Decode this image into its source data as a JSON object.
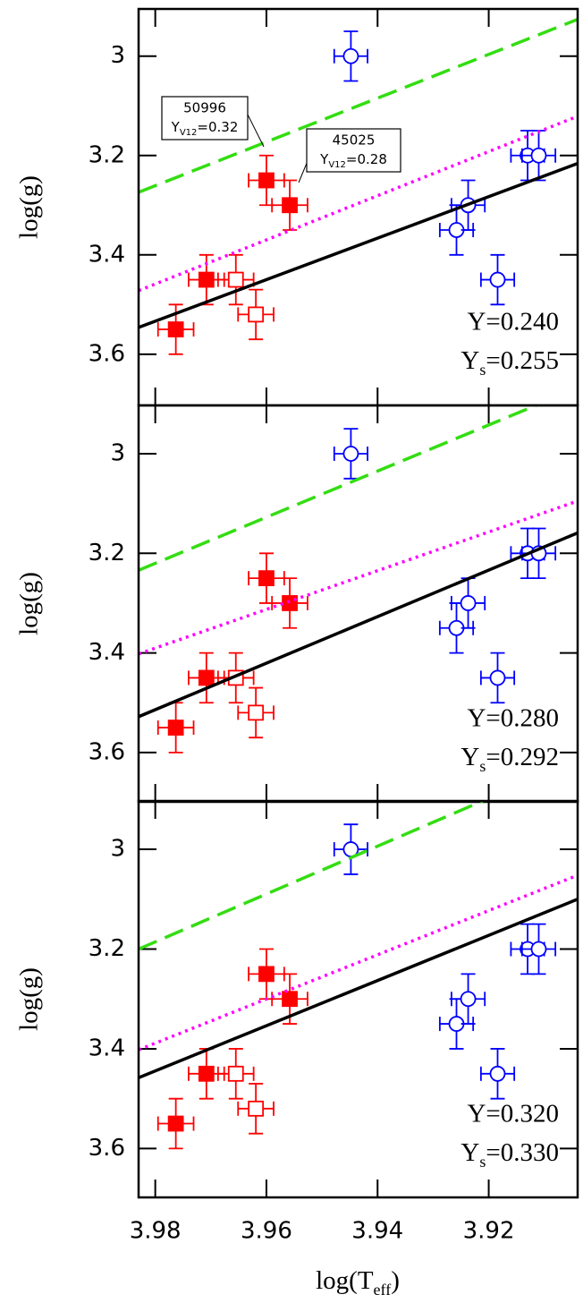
{
  "chart_data": [
    {
      "type": "scatter",
      "y_label": "log(g)",
      "xlim": [
        3.983,
        3.904
      ],
      "ylim": [
        3.703,
        2.905
      ],
      "xticks": [
        3.98,
        3.96,
        3.94,
        3.92
      ],
      "yticks": [
        3,
        3.2,
        3.4,
        3.6
      ],
      "series": [
        {
          "marker": "filled-square",
          "color": "#ff0000",
          "x": [
            3.9763,
            3.9708,
            3.96,
            3.9558
          ],
          "values": [
            3.55,
            3.45,
            3.25,
            3.3
          ],
          "xerr": 0.0032,
          "yerr": 0.05
        },
        {
          "marker": "open-square",
          "color": "#ff0000",
          "x": [
            3.9655,
            3.9619
          ],
          "values": [
            3.45,
            3.52
          ],
          "xerr": 0.0032,
          "yerr": 0.05
        },
        {
          "marker": "open-circle",
          "color": "#0000ff",
          "x": [
            3.9448,
            3.9258,
            3.9237,
            3.9184,
            3.913,
            3.911
          ],
          "values": [
            3.0,
            3.35,
            3.3,
            3.45,
            3.2,
            3.2
          ],
          "xerr": 0.003,
          "yerr": 0.05
        },
        {
          "marker": "solid-line",
          "color": "#000000",
          "x": [
            3.983,
            3.904
          ],
          "values": [
            3.546,
            3.216
          ]
        },
        {
          "marker": "dotted-line",
          "color": "#ff00ff",
          "x": [
            3.983,
            3.904
          ],
          "values": [
            3.472,
            3.121
          ]
        },
        {
          "marker": "dashed-line",
          "color": "#33dd11",
          "x": [
            3.983,
            3.904
          ],
          "values": [
            3.274,
            2.926
          ]
        }
      ],
      "label_y": {
        "text": "Y=0.240"
      },
      "label_ys": {
        "text": "Y",
        "sub": "s",
        "after": "=0.255"
      },
      "boxes": [
        {
          "id": "50996",
          "text": "Y",
          "sub": "V12",
          "after": "=0.32"
        },
        {
          "id": "45025",
          "text": "Y",
          "sub": "V12",
          "after": "=0.28"
        }
      ]
    },
    {
      "type": "scatter",
      "y_label": "log(g)",
      "xlim": [
        3.983,
        3.904
      ],
      "ylim": [
        3.699,
        2.903
      ],
      "xticks": [
        3.98,
        3.96,
        3.94,
        3.92
      ],
      "yticks": [
        3,
        3.2,
        3.4,
        3.6
      ],
      "series": [
        {
          "marker": "filled-square",
          "color": "#ff0000",
          "x": [
            3.9763,
            3.9708,
            3.96,
            3.9558
          ],
          "values": [
            3.55,
            3.45,
            3.25,
            3.3
          ],
          "xerr": 0.0032,
          "yerr": 0.05
        },
        {
          "marker": "open-square",
          "color": "#ff0000",
          "x": [
            3.9655,
            3.9619
          ],
          "values": [
            3.45,
            3.52
          ],
          "xerr": 0.0032,
          "yerr": 0.05
        },
        {
          "marker": "open-circle",
          "color": "#0000ff",
          "x": [
            3.9448,
            3.9258,
            3.9237,
            3.9184,
            3.913,
            3.911
          ],
          "values": [
            3.0,
            3.35,
            3.3,
            3.45,
            3.2,
            3.2
          ],
          "xerr": 0.003,
          "yerr": 0.05
        },
        {
          "marker": "solid-line",
          "color": "#000000",
          "x": [
            3.983,
            3.904
          ],
          "values": [
            3.528,
            3.159
          ]
        },
        {
          "marker": "dotted-line",
          "color": "#ff00ff",
          "x": [
            3.983,
            3.904
          ],
          "values": [
            3.402,
            3.095
          ]
        },
        {
          "marker": "dashed-line",
          "color": "#33dd11",
          "x": [
            3.983,
            3.9115
          ],
          "values": [
            3.234,
            2.903
          ]
        }
      ],
      "label_y": {
        "text": "Y=0.280"
      },
      "label_ys": {
        "text": "Y",
        "sub": "s",
        "after": "=0.292"
      }
    },
    {
      "type": "scatter",
      "y_label": "log(g)",
      "x_label": {
        "text": "log(T",
        "sub": "eff",
        "after": ")"
      },
      "xlim": [
        3.983,
        3.904
      ],
      "ylim": [
        3.698,
        2.903
      ],
      "xticks": [
        3.98,
        3.96,
        3.94,
        3.92
      ],
      "yticks": [
        3,
        3.2,
        3.4,
        3.6
      ],
      "series": [
        {
          "marker": "filled-square",
          "color": "#ff0000",
          "x": [
            3.9763,
            3.9708,
            3.96,
            3.9558
          ],
          "values": [
            3.55,
            3.45,
            3.25,
            3.3
          ],
          "xerr": 0.0032,
          "yerr": 0.05
        },
        {
          "marker": "open-square",
          "color": "#ff0000",
          "x": [
            3.9655,
            3.9619
          ],
          "values": [
            3.45,
            3.52
          ],
          "xerr": 0.0032,
          "yerr": 0.05
        },
        {
          "marker": "open-circle",
          "color": "#0000ff",
          "x": [
            3.9448,
            3.9258,
            3.9237,
            3.9184,
            3.913,
            3.911
          ],
          "values": [
            3.0,
            3.35,
            3.3,
            3.45,
            3.2,
            3.2
          ],
          "xerr": 0.003,
          "yerr": 0.05
        },
        {
          "marker": "solid-line",
          "color": "#000000",
          "x": [
            3.983,
            3.904
          ],
          "values": [
            3.458,
            3.1
          ]
        },
        {
          "marker": "dotted-line",
          "color": "#ff00ff",
          "x": [
            3.983,
            3.904
          ],
          "values": [
            3.402,
            3.052
          ]
        },
        {
          "marker": "dashed-line",
          "color": "#33dd11",
          "x": [
            3.983,
            3.9211
          ],
          "values": [
            3.2,
            2.903
          ]
        }
      ],
      "label_y": {
        "text": "Y=0.320"
      },
      "label_ys": {
        "text": "Y",
        "sub": "s",
        "after": "=0.330"
      }
    }
  ]
}
